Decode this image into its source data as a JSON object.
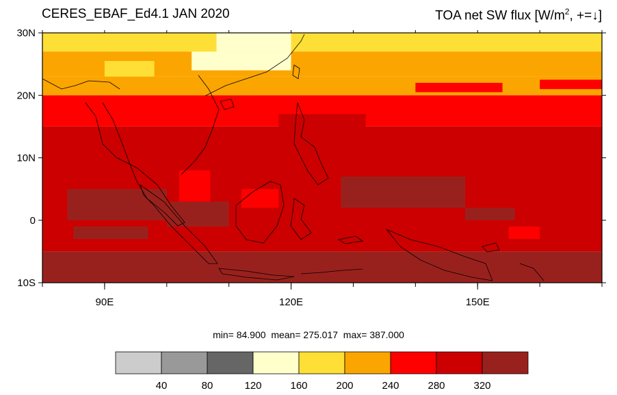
{
  "title_left": "CERES_EBAF_Ed4.1 JAN 2020",
  "title_right": {
    "prefix": "TOA net SW flux [W/m",
    "exp": "2",
    "suffix": ", +=↓]"
  },
  "stats": {
    "min_label": "min=",
    "min": "84.900",
    "mean_label": "mean=",
    "mean": "275.017",
    "max_label": "max=",
    "max": "387.000"
  },
  "map": {
    "lon_range": [
      80,
      170
    ],
    "lat_range": [
      -10,
      30
    ],
    "lat_ticks": [
      {
        "value": 30,
        "label": "30N"
      },
      {
        "value": 20,
        "label": "20N"
      },
      {
        "value": 10,
        "label": "10N"
      },
      {
        "value": 0,
        "label": "0"
      },
      {
        "value": -10,
        "label": "10S"
      }
    ],
    "lon_ticks": [
      {
        "value": 90,
        "label": "90E"
      },
      {
        "value": 120,
        "label": "120E"
      },
      {
        "value": 150,
        "label": "150E"
      }
    ],
    "bands": [
      {
        "lat_from": 27,
        "lat_to": 30,
        "level": 160
      },
      {
        "lat_from": 23,
        "lat_to": 27,
        "level": 200
      },
      {
        "lat_from": 20,
        "lat_to": 23,
        "level": 200
      },
      {
        "lat_from": 15,
        "lat_to": 20,
        "level": 240
      },
      {
        "lat_from": -5,
        "lat_to": 15,
        "level": 280
      },
      {
        "lat_from": -10,
        "lat_to": -5,
        "level": 320
      }
    ]
  },
  "colorbar": {
    "colors": [
      "#cccccc",
      "#999999",
      "#666666",
      "#ffffcc",
      "#fedf35",
      "#fba500",
      "#ff0000",
      "#cc0000",
      "#99211d"
    ],
    "labels": [
      "40",
      "80",
      "120",
      "160",
      "200",
      "240",
      "280",
      "320"
    ]
  }
}
